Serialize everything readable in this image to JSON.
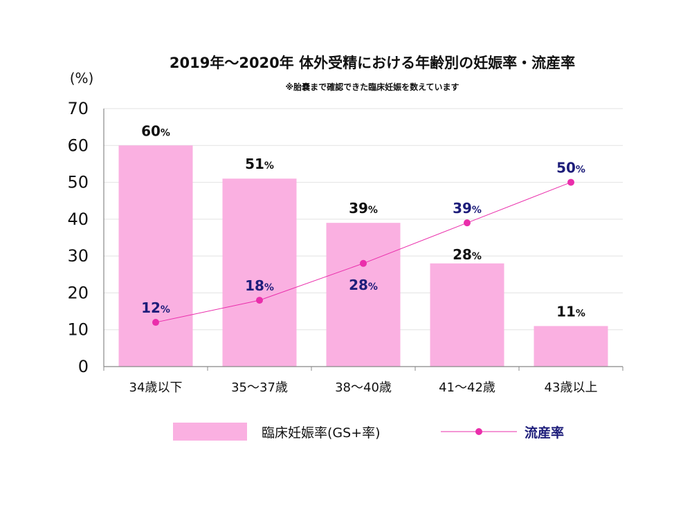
{
  "chart_data": {
    "type": "bar",
    "title": "2019年〜2020年 体外受精における年齢別の妊娠率・流産率",
    "subtitle": "※胎嚢まで確認できた臨床妊娠を数えています",
    "ylabel": "(%)",
    "ylim": [
      0,
      70
    ],
    "yticks": [
      0,
      10,
      20,
      30,
      40,
      50,
      60,
      70
    ],
    "grid": true,
    "legend_position": "bottom",
    "categories": [
      "34歳以下",
      "35〜37歳",
      "38〜40歳",
      "41〜42歳",
      "43歳以上"
    ],
    "series": [
      {
        "name": "臨床妊娠率(GS+率)",
        "type": "bar",
        "color": "#fab0e1",
        "values": [
          60,
          51,
          39,
          28,
          11
        ],
        "labels": [
          "60",
          "51",
          "39",
          "28",
          "11"
        ]
      },
      {
        "name": "流産率",
        "type": "line",
        "color": "#ea2eab",
        "values": [
          12,
          18,
          28,
          39,
          50
        ],
        "labels": [
          "12",
          "18",
          "28",
          "39",
          "50"
        ]
      }
    ],
    "unit_suffix": "%"
  }
}
